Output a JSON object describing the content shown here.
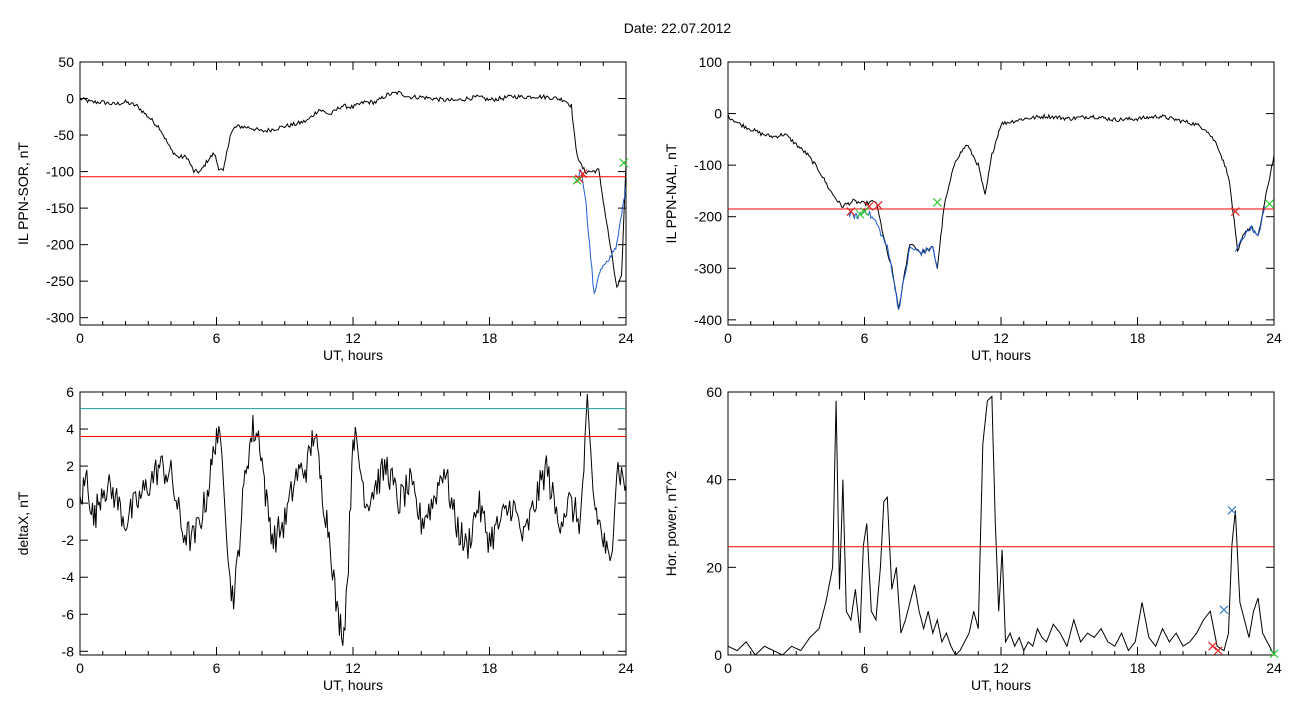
{
  "figure": {
    "title": "Date:  22.07.2012"
  },
  "colors": {
    "trace": "#000000",
    "threshold": "#ff0000",
    "threshold2": "#1a9e9e",
    "segment": "#1f5fd0",
    "mark_red": "#e0201f",
    "mark_green": "#32c832",
    "mark_blue": "#3a7fc8"
  },
  "chart_data": [
    {
      "id": "sor",
      "type": "line",
      "title": "",
      "xlabel": "UT, hours",
      "ylabel": "IL PPN-SOR, nT",
      "xlim": [
        0,
        24
      ],
      "ylim": [
        -310,
        50
      ],
      "xticks": [
        0,
        6,
        12,
        18,
        24
      ],
      "yticks": [
        50,
        0,
        -50,
        -100,
        -150,
        -200,
        -250,
        -300
      ],
      "thresholds": [
        {
          "y": -107,
          "color": "threshold"
        }
      ],
      "series": [
        {
          "color": "trace",
          "noise": 3,
          "x": [
            0,
            0.5,
            1,
            1.5,
            2,
            2.5,
            3,
            3.5,
            4,
            4.3,
            4.7,
            5,
            5.3,
            5.6,
            5.9,
            6.1,
            6.3,
            6.6,
            6.8,
            7,
            7.5,
            8,
            8.5,
            9,
            9.5,
            10,
            10.5,
            11,
            11.5,
            12,
            12.5,
            13,
            13.5,
            14,
            14.5,
            15,
            15.5,
            16,
            16.5,
            17,
            17.5,
            18,
            18.5,
            19,
            19.5,
            20,
            20.5,
            21,
            21.3,
            21.6,
            21.8,
            22,
            22.2,
            22.5,
            22.8,
            23,
            23.3,
            23.6,
            23.8,
            24
          ],
          "y": [
            0,
            -5,
            -5,
            -8,
            -5,
            -10,
            -25,
            -40,
            -70,
            -80,
            -80,
            -100,
            -100,
            -85,
            -75,
            -95,
            -100,
            -50,
            -40,
            -38,
            -40,
            -45,
            -42,
            -38,
            -35,
            -30,
            -15,
            -22,
            -10,
            -12,
            -5,
            -5,
            5,
            8,
            2,
            2,
            0,
            -2,
            -3,
            0,
            2,
            -2,
            0,
            3,
            2,
            3,
            2,
            0,
            -2,
            -10,
            -70,
            -90,
            -100,
            -100,
            -98,
            -140,
            -200,
            -260,
            -245,
            -90
          ]
        },
        {
          "color": "segment",
          "noise": 4,
          "x": [
            21.9,
            22.0,
            22.2,
            22.4,
            22.6,
            22.8,
            23.0,
            23.2,
            23.4,
            23.6,
            23.8,
            24.0
          ],
          "y": [
            -110,
            -95,
            -130,
            -200,
            -270,
            -240,
            -230,
            -225,
            -210,
            -200,
            -160,
            -120
          ]
        }
      ],
      "markers": [
        {
          "x": 21.95,
          "y": -110,
          "color": "mark_red"
        },
        {
          "x": 22.1,
          "y": -103,
          "color": "mark_red"
        },
        {
          "x": 21.85,
          "y": -112,
          "color": "mark_green"
        },
        {
          "x": 23.9,
          "y": -88,
          "color": "mark_green"
        }
      ]
    },
    {
      "id": "nal",
      "type": "line",
      "title": "",
      "xlabel": "UT, hours",
      "ylabel": "IL PPN-NAL, nT",
      "xlim": [
        0,
        24
      ],
      "ylim": [
        -410,
        100
      ],
      "xticks": [
        0,
        6,
        12,
        18,
        24
      ],
      "yticks": [
        100,
        0,
        -100,
        -200,
        -300,
        -400
      ],
      "thresholds": [
        {
          "y": -185,
          "color": "threshold"
        }
      ],
      "series": [
        {
          "color": "trace",
          "noise": 4,
          "x": [
            0,
            0.5,
            1,
            1.5,
            2,
            2.5,
            3,
            3.5,
            4,
            4.5,
            5,
            5.5,
            6,
            6.5,
            7,
            7.2,
            7.5,
            8,
            8.5,
            9,
            9.2,
            9.5,
            10,
            10.5,
            11,
            11.3,
            11.6,
            12,
            12.5,
            13,
            14,
            15,
            16,
            17,
            18,
            19,
            20,
            20.5,
            21,
            21.5,
            22,
            22.2,
            22.4,
            22.7,
            23,
            23.3,
            23.6,
            24
          ],
          "y": [
            -5,
            -20,
            -30,
            -40,
            -45,
            -40,
            -60,
            -80,
            -110,
            -150,
            -180,
            -170,
            -175,
            -170,
            -270,
            -300,
            -380,
            -250,
            -270,
            -260,
            -300,
            -180,
            -90,
            -60,
            -100,
            -160,
            -80,
            -20,
            -15,
            -10,
            -5,
            -10,
            -5,
            -12,
            -10,
            -5,
            -15,
            -20,
            -30,
            -60,
            -120,
            -190,
            -270,
            -230,
            -220,
            -240,
            -170,
            -80
          ]
        },
        {
          "color": "segment",
          "noise": 6,
          "x": [
            5.3,
            5.7,
            6.0,
            6.5,
            7.0,
            7.2,
            7.5,
            8.0,
            8.5,
            9.0,
            9.2
          ],
          "y": [
            -195,
            -200,
            -185,
            -210,
            -260,
            -300,
            -380,
            -260,
            -270,
            -260,
            -300
          ]
        },
        {
          "color": "segment",
          "noise": 4,
          "x": [
            22.3,
            22.5,
            22.8,
            23.0,
            23.3,
            23.6
          ],
          "y": [
            -270,
            -250,
            -230,
            -220,
            -240,
            -180
          ]
        }
      ],
      "markers": [
        {
          "x": 5.4,
          "y": -190,
          "color": "mark_red"
        },
        {
          "x": 6.2,
          "y": -180,
          "color": "mark_red"
        },
        {
          "x": 6.6,
          "y": -178,
          "color": "mark_red"
        },
        {
          "x": 22.3,
          "y": -190,
          "color": "mark_red"
        },
        {
          "x": 5.8,
          "y": -195,
          "color": "mark_green"
        },
        {
          "x": 6.0,
          "y": -190,
          "color": "mark_green"
        },
        {
          "x": 9.2,
          "y": -172,
          "color": "mark_green"
        },
        {
          "x": 23.8,
          "y": -175,
          "color": "mark_green"
        }
      ]
    },
    {
      "id": "deltax",
      "type": "line",
      "title": "",
      "xlabel": "UT, hours",
      "ylabel": "deltaX, nT",
      "xlim": [
        0,
        24
      ],
      "ylim": [
        -8.2,
        6
      ],
      "xticks": [
        0,
        6,
        12,
        18,
        24
      ],
      "yticks": [
        6,
        4,
        2,
        0,
        -2,
        -4,
        -6,
        -8
      ],
      "thresholds": [
        {
          "y": 5.1,
          "color": "threshold2"
        },
        {
          "y": 3.6,
          "color": "threshold"
        }
      ],
      "series": [
        {
          "color": "trace",
          "noise": 0.9,
          "x": [
            0,
            0.3,
            0.6,
            1,
            1.5,
            2,
            2.5,
            3,
            3.5,
            4,
            4.5,
            5,
            5.5,
            5.8,
            6,
            6.3,
            6.6,
            6.8,
            7,
            7.3,
            7.6,
            7.9,
            8.2,
            8.5,
            9,
            9.5,
            10,
            10.3,
            10.6,
            11,
            11.3,
            11.6,
            11.8,
            12,
            12.3,
            12.6,
            13,
            13.5,
            14,
            14.5,
            15,
            15.5,
            16,
            16.5,
            17,
            17.5,
            18,
            18.5,
            19,
            19.5,
            20,
            20.5,
            21,
            21.5,
            22,
            22.3,
            22.6,
            23,
            23.3,
            23.6,
            24
          ],
          "y": [
            0,
            1.5,
            -1,
            1,
            0.5,
            -1,
            0,
            1,
            2,
            1.5,
            -1.5,
            -2,
            0,
            2,
            4,
            2,
            -4.5,
            -5,
            -2,
            2,
            4,
            3.5,
            0,
            -2,
            -1,
            1.5,
            2,
            4,
            1,
            -2,
            -6,
            -7,
            -3,
            4,
            2,
            0,
            1,
            2,
            0,
            1,
            -1,
            0,
            2,
            -1,
            -2.5,
            0,
            -2,
            -1,
            0,
            -2,
            0,
            2,
            -1,
            0,
            -1,
            5,
            0,
            -2,
            -3.5,
            2,
            1
          ]
        }
      ],
      "markers": []
    },
    {
      "id": "power",
      "type": "line",
      "title": "",
      "xlabel": "UT, hours",
      "ylabel": "Hor. power, nT^2",
      "xlim": [
        0,
        24
      ],
      "ylim": [
        0,
        60
      ],
      "xticks": [
        0,
        6,
        12,
        18,
        24
      ],
      "yticks": [
        60,
        40,
        20,
        0
      ],
      "thresholds": [
        {
          "y": 24.7,
          "color": "threshold"
        }
      ],
      "series": [
        {
          "color": "trace",
          "noise": 0,
          "x": [
            0,
            0.4,
            0.8,
            1.2,
            1.6,
            2,
            2.4,
            2.8,
            3.2,
            3.6,
            4,
            4.3,
            4.6,
            4.75,
            4.9,
            5.05,
            5.2,
            5.4,
            5.6,
            5.8,
            5.95,
            6.1,
            6.3,
            6.5,
            6.7,
            6.85,
            7,
            7.2,
            7.4,
            7.6,
            7.8,
            8,
            8.2,
            8.4,
            8.6,
            8.8,
            9,
            9.2,
            9.4,
            9.6,
            9.8,
            10,
            10.2,
            10.4,
            10.6,
            10.8,
            11,
            11.2,
            11.4,
            11.6,
            11.75,
            11.9,
            12.05,
            12.2,
            12.4,
            12.6,
            12.8,
            13,
            13.2,
            13.4,
            13.6,
            13.8,
            14,
            14.3,
            14.6,
            14.9,
            15.2,
            15.5,
            15.8,
            16.1,
            16.4,
            16.7,
            17,
            17.3,
            17.6,
            17.9,
            18.2,
            18.5,
            18.8,
            19.1,
            19.4,
            19.7,
            20,
            20.3,
            20.6,
            20.9,
            21.2,
            21.5,
            21.8,
            22,
            22.15,
            22.3,
            22.5,
            22.7,
            22.9,
            23.1,
            23.3,
            23.5,
            23.7,
            24
          ],
          "y": [
            2,
            1,
            3,
            0,
            2,
            1,
            0,
            2,
            1,
            4,
            6,
            12,
            20,
            58,
            15,
            40,
            10,
            8,
            15,
            5,
            25,
            30,
            10,
            8,
            20,
            35,
            36,
            15,
            20,
            5,
            8,
            12,
            16,
            10,
            6,
            10,
            5,
            8,
            3,
            5,
            2,
            0,
            1,
            3,
            5,
            10,
            6,
            48,
            58,
            59,
            30,
            10,
            24,
            3,
            5,
            2,
            4,
            1,
            3,
            2,
            6,
            4,
            3,
            7,
            5,
            2,
            8,
            3,
            5,
            4,
            6,
            3,
            2,
            5,
            1,
            3,
            12,
            4,
            2,
            6,
            3,
            5,
            2,
            3,
            5,
            8,
            10,
            2,
            1,
            5,
            25,
            33,
            12,
            8,
            4,
            10,
            13,
            5,
            3,
            0
          ]
        }
      ],
      "markers": [
        {
          "x": 21.3,
          "y": 2.0,
          "color": "mark_red"
        },
        {
          "x": 21.55,
          "y": 1.0,
          "color": "mark_red"
        },
        {
          "x": 21.8,
          "y": 10.3,
          "color": "mark_blue"
        },
        {
          "x": 22.15,
          "y": 33.0,
          "color": "mark_blue"
        },
        {
          "x": 24.0,
          "y": 0.3,
          "color": "mark_green"
        }
      ]
    }
  ]
}
